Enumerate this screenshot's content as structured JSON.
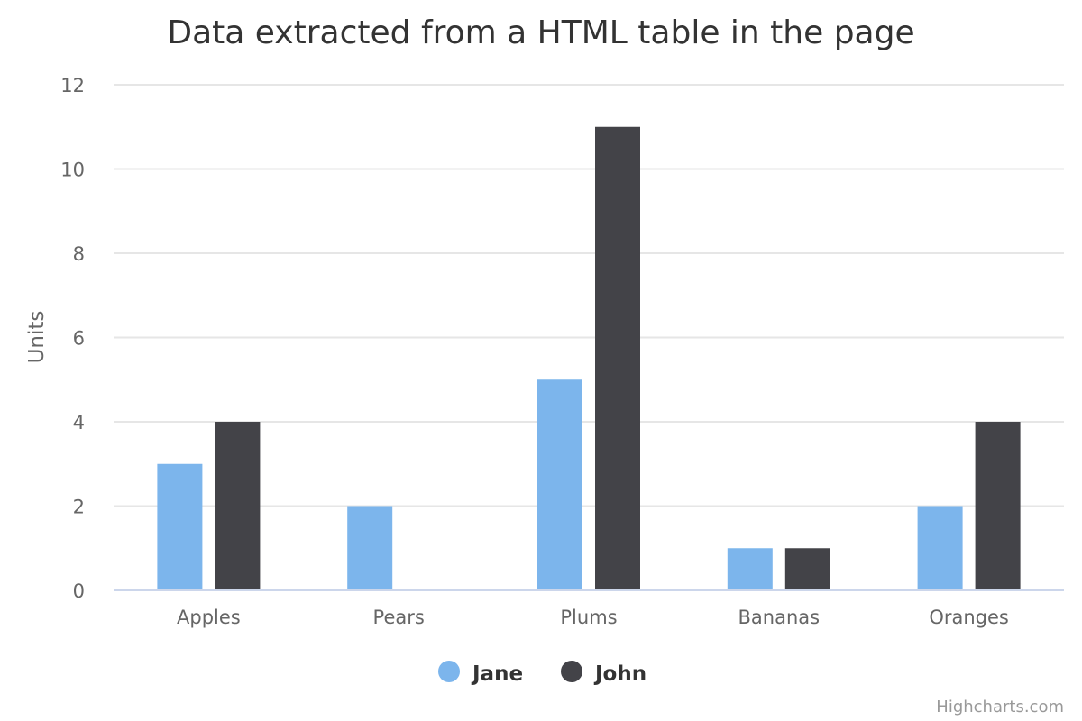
{
  "chart_data": {
    "type": "bar",
    "title": "Data extracted from a HTML table in the page",
    "xlabel": "",
    "ylabel": "Units",
    "categories": [
      "Apples",
      "Pears",
      "Plums",
      "Bananas",
      "Oranges"
    ],
    "series": [
      {
        "name": "Jane",
        "color": "#7cb5ec",
        "values": [
          3,
          2,
          5,
          1,
          2
        ]
      },
      {
        "name": "John",
        "color": "#434348",
        "values": [
          4,
          0,
          11,
          1,
          4
        ]
      }
    ],
    "ylim": [
      0,
      12
    ],
    "yticks": [
      0,
      2,
      4,
      6,
      8,
      10,
      12
    ],
    "grid": true,
    "legend_position": "bottom-center"
  },
  "credits": "Highcharts.com"
}
